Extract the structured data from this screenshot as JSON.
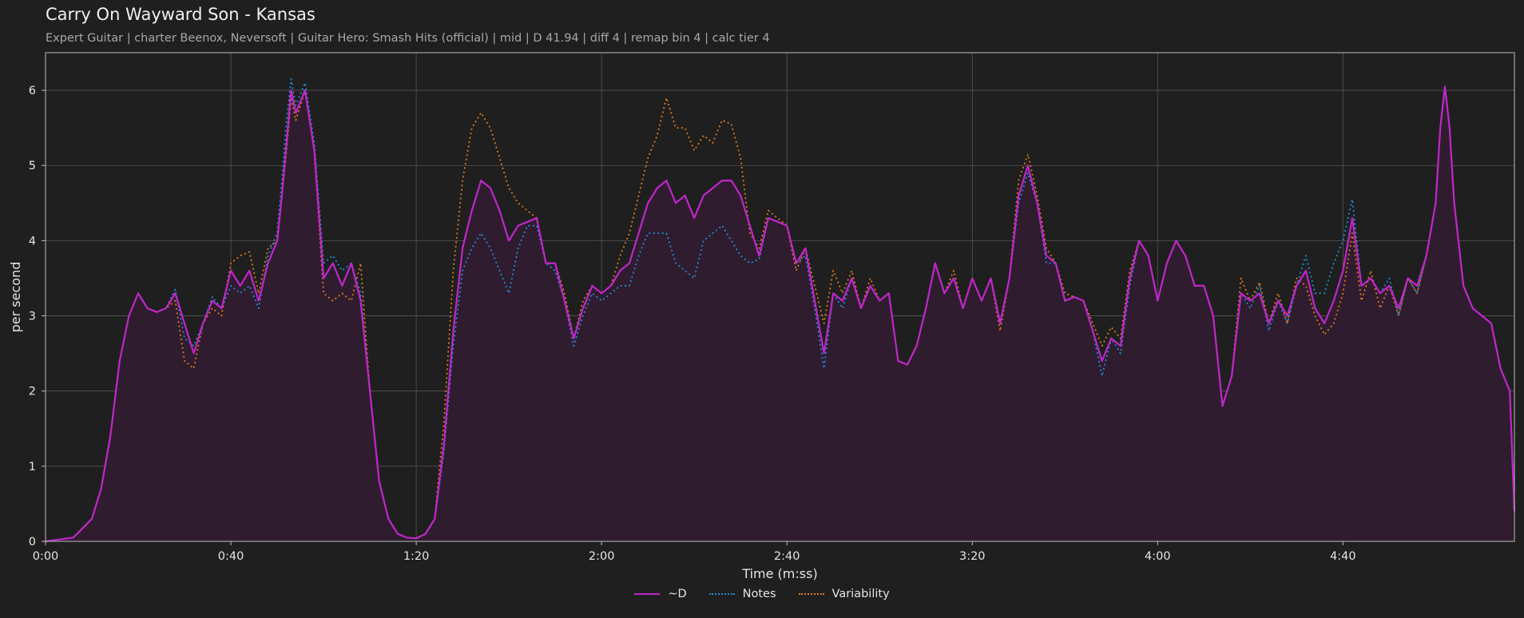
{
  "title": "Carry On Wayward Son - Kansas",
  "subtitle": "Expert Guitar  |  charter Beenox,  Neversoft  |  Guitar Hero: Smash Hits (official)  |  mid  |  D 41.94  |  diff 4  |  remap bin 4  |  calc tier 4",
  "colors": {
    "background": "#1f1f1f",
    "plot_background": "#1f1f1f",
    "grid": "#555555",
    "d_line": "#c026c9",
    "notes_line": "#1f8fd6",
    "variability_line": "#e07a1a",
    "fill": "#2f1c2f"
  },
  "chart_data": {
    "type": "line",
    "title": "Carry On Wayward Son - Kansas",
    "xlabel": "Time (m:ss)",
    "ylabel": "per second",
    "xlim": [
      0,
      317
    ],
    "ylim": [
      0,
      6.5
    ],
    "x_ticks": [
      0,
      40,
      80,
      120,
      160,
      200,
      240,
      280
    ],
    "x_tick_labels": [
      "0:00",
      "0:40",
      "1:20",
      "2:00",
      "2:40",
      "3:20",
      "4:00",
      "4:40"
    ],
    "y_ticks": [
      0,
      1,
      2,
      3,
      4,
      5,
      6
    ],
    "y_tick_labels": [
      "0",
      "1",
      "2",
      "3",
      "4",
      "5",
      "6"
    ],
    "grid": true,
    "legend_position": "bottom-center",
    "series": [
      {
        "name": "~D",
        "style": "solid",
        "filled": true,
        "x": [
          0,
          6,
          10,
          12,
          14,
          16,
          18,
          20,
          22,
          24,
          26,
          28,
          30,
          32,
          34,
          36,
          38,
          40,
          42,
          44,
          46,
          48,
          50,
          51,
          52,
          53,
          54,
          56,
          58,
          60,
          62,
          64,
          66,
          68,
          70,
          72,
          74,
          76,
          78,
          80,
          82,
          84,
          86,
          88,
          90,
          92,
          94,
          96,
          98,
          100,
          102,
          104,
          106,
          108,
          110,
          112,
          114,
          116,
          118,
          120,
          122,
          124,
          126,
          128,
          130,
          132,
          134,
          136,
          138,
          140,
          142,
          144,
          146,
          148,
          150,
          152,
          154,
          156,
          158,
          160,
          162,
          164,
          166,
          168,
          170,
          172,
          174,
          176,
          178,
          180,
          182,
          184,
          186,
          188,
          190,
          192,
          194,
          196,
          198,
          200,
          202,
          204,
          206,
          208,
          210,
          212,
          214,
          216,
          218,
          220,
          222,
          224,
          226,
          228,
          230,
          232,
          234,
          236,
          238,
          240,
          242,
          244,
          246,
          248,
          250,
          252,
          254,
          256,
          258,
          260,
          262,
          264,
          266,
          268,
          270,
          272,
          274,
          276,
          278,
          280,
          282,
          284,
          286,
          288,
          290,
          292,
          294,
          296,
          298,
          300,
          301,
          302,
          303,
          304,
          306,
          308,
          310,
          312,
          314,
          316,
          317
        ],
        "y": [
          0,
          0.05,
          0.3,
          0.7,
          1.4,
          2.4,
          3.0,
          3.3,
          3.1,
          3.05,
          3.1,
          3.3,
          2.9,
          2.5,
          2.9,
          3.2,
          3.1,
          3.6,
          3.4,
          3.6,
          3.2,
          3.7,
          4.0,
          4.6,
          5.3,
          6.0,
          5.7,
          6.0,
          5.2,
          3.5,
          3.7,
          3.4,
          3.7,
          3.2,
          2.0,
          0.8,
          0.3,
          0.1,
          0.05,
          0.04,
          0.1,
          0.3,
          1.3,
          2.8,
          3.9,
          4.4,
          4.8,
          4.7,
          4.4,
          4.0,
          4.2,
          4.25,
          4.3,
          3.7,
          3.7,
          3.2,
          2.7,
          3.1,
          3.4,
          3.3,
          3.4,
          3.6,
          3.7,
          4.1,
          4.5,
          4.7,
          4.8,
          4.5,
          4.6,
          4.3,
          4.6,
          4.7,
          4.8,
          4.8,
          4.6,
          4.2,
          3.8,
          4.3,
          4.25,
          4.2,
          3.7,
          3.9,
          3.2,
          2.5,
          3.3,
          3.2,
          3.5,
          3.1,
          3.4,
          3.2,
          3.3,
          2.4,
          2.35,
          2.6,
          3.1,
          3.7,
          3.3,
          3.5,
          3.1,
          3.5,
          3.2,
          3.5,
          2.9,
          3.5,
          4.6,
          5.0,
          4.5,
          3.8,
          3.7,
          3.2,
          3.25,
          3.2,
          2.8,
          2.4,
          2.7,
          2.6,
          3.5,
          4.0,
          3.8,
          3.2,
          3.7,
          4.0,
          3.8,
          3.4,
          3.4,
          3.0,
          1.8,
          2.2,
          3.3,
          3.2,
          3.3,
          2.9,
          3.2,
          3.0,
          3.4,
          3.6,
          3.1,
          2.9,
          3.2,
          3.6,
          4.3,
          3.4,
          3.5,
          3.3,
          3.4,
          3.1,
          3.5,
          3.4,
          3.8,
          4.5,
          5.5,
          6.05,
          5.5,
          4.5,
          3.4,
          3.1,
          3.0,
          2.9,
          2.3,
          2.0,
          0.4
        ]
      },
      {
        "name": "Notes",
        "style": "dotted",
        "filled": false,
        "x": [
          0,
          6,
          10,
          12,
          14,
          16,
          18,
          20,
          22,
          24,
          26,
          28,
          30,
          32,
          34,
          36,
          38,
          40,
          42,
          44,
          46,
          48,
          50,
          51,
          52,
          53,
          54,
          56,
          58,
          60,
          62,
          64,
          66,
          68,
          70,
          72,
          74,
          76,
          78,
          80,
          82,
          84,
          86,
          88,
          90,
          92,
          94,
          96,
          98,
          100,
          102,
          104,
          106,
          108,
          110,
          112,
          114,
          116,
          118,
          120,
          122,
          124,
          126,
          128,
          130,
          132,
          134,
          136,
          138,
          140,
          142,
          144,
          146,
          148,
          150,
          152,
          154,
          156,
          158,
          160,
          162,
          164,
          166,
          168,
          170,
          172,
          174,
          176,
          178,
          180,
          182,
          184,
          186,
          188,
          190,
          192,
          194,
          196,
          198,
          200,
          202,
          204,
          206,
          208,
          210,
          212,
          214,
          216,
          218,
          220,
          222,
          224,
          226,
          228,
          230,
          232,
          234,
          236,
          238,
          240,
          242,
          244,
          246,
          248,
          250,
          252,
          254,
          256,
          258,
          260,
          262,
          264,
          266,
          268,
          270,
          272,
          274,
          276,
          278,
          280,
          282,
          284,
          286,
          288,
          290,
          292,
          294,
          296,
          298,
          300,
          301,
          302,
          303,
          304,
          306,
          308,
          310,
          312,
          314,
          316,
          317
        ],
        "y": [
          0,
          0.05,
          0.3,
          0.7,
          1.4,
          2.4,
          3.0,
          3.3,
          3.1,
          3.05,
          3.1,
          3.35,
          2.7,
          2.6,
          2.9,
          3.25,
          3.1,
          3.4,
          3.3,
          3.4,
          3.1,
          3.8,
          4.1,
          4.8,
          5.6,
          6.15,
          5.8,
          6.1,
          5.3,
          3.7,
          3.8,
          3.6,
          3.7,
          3.3,
          2.0,
          0.8,
          0.3,
          0.1,
          0.05,
          0.04,
          0.1,
          0.3,
          1.2,
          2.6,
          3.6,
          3.9,
          4.1,
          3.9,
          3.6,
          3.3,
          3.9,
          4.2,
          4.2,
          3.7,
          3.6,
          3.2,
          2.6,
          3.0,
          3.3,
          3.2,
          3.3,
          3.4,
          3.4,
          3.8,
          4.1,
          4.1,
          4.1,
          3.7,
          3.6,
          3.5,
          4.0,
          4.1,
          4.2,
          4.0,
          3.8,
          3.7,
          3.75,
          4.3,
          4.25,
          4.2,
          3.7,
          3.8,
          3.1,
          2.3,
          3.3,
          3.1,
          3.5,
          3.1,
          3.4,
          3.2,
          3.3,
          2.4,
          2.35,
          2.6,
          3.1,
          3.7,
          3.3,
          3.5,
          3.1,
          3.5,
          3.2,
          3.5,
          2.9,
          3.5,
          4.5,
          4.9,
          4.5,
          3.7,
          3.7,
          3.2,
          3.25,
          3.2,
          2.8,
          2.2,
          2.7,
          2.5,
          3.4,
          4.0,
          3.8,
          3.2,
          3.7,
          4.0,
          3.8,
          3.4,
          3.4,
          3.0,
          1.8,
          2.2,
          3.3,
          3.1,
          3.4,
          2.8,
          3.2,
          2.9,
          3.4,
          3.8,
          3.3,
          3.3,
          3.7,
          4.0,
          4.55,
          3.4,
          3.5,
          3.3,
          3.5,
          3.0,
          3.5,
          3.3,
          3.8,
          4.5,
          5.5,
          6.05,
          5.5,
          4.5,
          3.4,
          3.1,
          3.0,
          2.9,
          2.3,
          2.0,
          0.4
        ]
      },
      {
        "name": "Variability",
        "style": "dotted",
        "filled": false,
        "x": [
          0,
          6,
          10,
          12,
          14,
          16,
          18,
          20,
          22,
          24,
          26,
          28,
          30,
          32,
          34,
          36,
          38,
          40,
          42,
          44,
          46,
          48,
          50,
          51,
          52,
          53,
          54,
          56,
          58,
          60,
          62,
          64,
          66,
          68,
          70,
          72,
          74,
          76,
          78,
          80,
          82,
          84,
          86,
          88,
          90,
          92,
          94,
          96,
          98,
          100,
          102,
          104,
          106,
          108,
          110,
          112,
          114,
          116,
          118,
          120,
          122,
          124,
          126,
          128,
          130,
          132,
          134,
          136,
          138,
          140,
          142,
          144,
          146,
          148,
          150,
          152,
          154,
          156,
          158,
          160,
          162,
          164,
          166,
          168,
          170,
          172,
          174,
          176,
          178,
          180,
          182,
          184,
          186,
          188,
          190,
          192,
          194,
          196,
          198,
          200,
          202,
          204,
          206,
          208,
          210,
          212,
          214,
          216,
          218,
          220,
          222,
          224,
          226,
          228,
          230,
          232,
          234,
          236,
          238,
          240,
          242,
          244,
          246,
          248,
          250,
          252,
          254,
          256,
          258,
          260,
          262,
          264,
          266,
          268,
          270,
          272,
          274,
          276,
          278,
          280,
          282,
          284,
          286,
          288,
          290,
          292,
          294,
          296,
          298,
          300,
          301,
          302,
          303,
          304,
          306,
          308,
          310,
          312,
          314,
          316,
          317
        ],
        "y": [
          0,
          0.05,
          0.3,
          0.7,
          1.4,
          2.4,
          3.0,
          3.3,
          3.1,
          3.05,
          3.1,
          3.2,
          2.4,
          2.3,
          2.9,
          3.1,
          3.0,
          3.7,
          3.8,
          3.85,
          3.3,
          3.9,
          4.0,
          4.6,
          5.2,
          5.9,
          5.6,
          6.0,
          5.2,
          3.3,
          3.2,
          3.3,
          3.2,
          3.7,
          2.0,
          0.8,
          0.3,
          0.1,
          0.05,
          0.04,
          0.1,
          0.3,
          1.6,
          3.6,
          4.8,
          5.5,
          5.7,
          5.5,
          5.1,
          4.7,
          4.5,
          4.4,
          4.3,
          3.7,
          3.7,
          3.3,
          2.7,
          3.2,
          3.4,
          3.3,
          3.4,
          3.8,
          4.1,
          4.6,
          5.1,
          5.4,
          5.9,
          5.5,
          5.5,
          5.2,
          5.4,
          5.3,
          5.6,
          5.55,
          5.1,
          4.1,
          3.9,
          4.4,
          4.3,
          4.2,
          3.6,
          3.9,
          3.4,
          2.9,
          3.6,
          3.3,
          3.6,
          3.1,
          3.5,
          3.2,
          3.3,
          2.4,
          2.35,
          2.6,
          3.1,
          3.7,
          3.3,
          3.6,
          3.1,
          3.5,
          3.2,
          3.5,
          2.8,
          3.5,
          4.8,
          5.15,
          4.6,
          3.9,
          3.7,
          3.3,
          3.25,
          3.2,
          2.9,
          2.6,
          2.85,
          2.7,
          3.6,
          4.0,
          3.8,
          3.2,
          3.7,
          4.0,
          3.8,
          3.4,
          3.4,
          3.0,
          1.8,
          2.2,
          3.5,
          3.2,
          3.45,
          2.9,
          3.3,
          2.9,
          3.5,
          3.4,
          3.0,
          2.75,
          2.9,
          3.3,
          4.1,
          3.2,
          3.6,
          3.1,
          3.4,
          3.0,
          3.5,
          3.3,
          3.8,
          4.5,
          5.5,
          6.05,
          5.5,
          4.5,
          3.4,
          3.1,
          3.0,
          2.9,
          2.3,
          2.0,
          0.4
        ]
      }
    ]
  }
}
